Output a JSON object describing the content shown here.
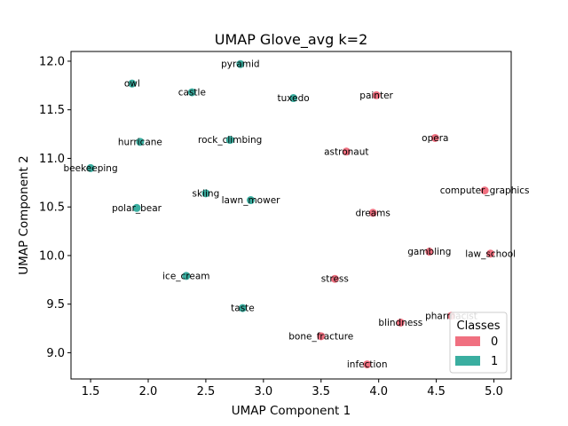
{
  "chart_data": {
    "type": "scatter",
    "title": "UMAP Glove_avg k=2",
    "xlabel": "UMAP Component 1",
    "ylabel": "UMAP Component 2",
    "xlim": [
      1.33,
      5.15
    ],
    "ylim": [
      8.73,
      12.1
    ],
    "xticks": [
      "1.5",
      "2.0",
      "2.5",
      "3.0",
      "3.5",
      "4.0",
      "4.5",
      "5.0"
    ],
    "yticks": [
      "9.0",
      "9.5",
      "10.0",
      "10.5",
      "11.0",
      "11.5",
      "12.0"
    ],
    "grid": false,
    "legend": {
      "title": "Classes",
      "placement": "lower-right",
      "entries": [
        {
          "label": "0",
          "color": "#f07080"
        },
        {
          "label": "1",
          "color": "#3aaea0"
        }
      ]
    },
    "points": [
      {
        "label": "pyramid",
        "x": 2.8,
        "y": 11.97,
        "class": 1
      },
      {
        "label": "owl",
        "x": 1.86,
        "y": 11.77,
        "class": 1
      },
      {
        "label": "castle",
        "x": 2.38,
        "y": 11.68,
        "class": 1
      },
      {
        "label": "tuxedo",
        "x": 3.26,
        "y": 11.62,
        "class": 1
      },
      {
        "label": "painter",
        "x": 3.98,
        "y": 11.65,
        "class": 0
      },
      {
        "label": "hurricane",
        "x": 1.93,
        "y": 11.17,
        "class": 1
      },
      {
        "label": "rock_climbing",
        "x": 2.71,
        "y": 11.19,
        "class": 1
      },
      {
        "label": "opera",
        "x": 4.49,
        "y": 11.21,
        "class": 0
      },
      {
        "label": "astronaut",
        "x": 3.72,
        "y": 11.07,
        "class": 0
      },
      {
        "label": "beekeeping",
        "x": 1.5,
        "y": 10.9,
        "class": 1
      },
      {
        "label": "computer_graphics",
        "x": 4.92,
        "y": 10.67,
        "class": 0
      },
      {
        "label": "skiing",
        "x": 2.5,
        "y": 10.64,
        "class": 1
      },
      {
        "label": "lawn_mower",
        "x": 2.89,
        "y": 10.57,
        "class": 1
      },
      {
        "label": "polar_bear",
        "x": 1.9,
        "y": 10.49,
        "class": 1
      },
      {
        "label": "dreams",
        "x": 3.95,
        "y": 10.44,
        "class": 0
      },
      {
        "label": "gambling",
        "x": 4.44,
        "y": 10.04,
        "class": 0
      },
      {
        "label": "law_school",
        "x": 4.97,
        "y": 10.02,
        "class": 0
      },
      {
        "label": "ice_cream",
        "x": 2.33,
        "y": 9.79,
        "class": 1
      },
      {
        "label": "stress",
        "x": 3.62,
        "y": 9.76,
        "class": 0
      },
      {
        "label": "taste",
        "x": 2.82,
        "y": 9.46,
        "class": 1
      },
      {
        "label": "pharmacist",
        "x": 4.63,
        "y": 9.38,
        "class": 0
      },
      {
        "label": "blindness",
        "x": 4.19,
        "y": 9.31,
        "class": 0
      },
      {
        "label": "bone_fracture",
        "x": 3.5,
        "y": 9.17,
        "class": 0
      },
      {
        "label": "infection",
        "x": 3.9,
        "y": 8.88,
        "class": 0
      }
    ]
  }
}
